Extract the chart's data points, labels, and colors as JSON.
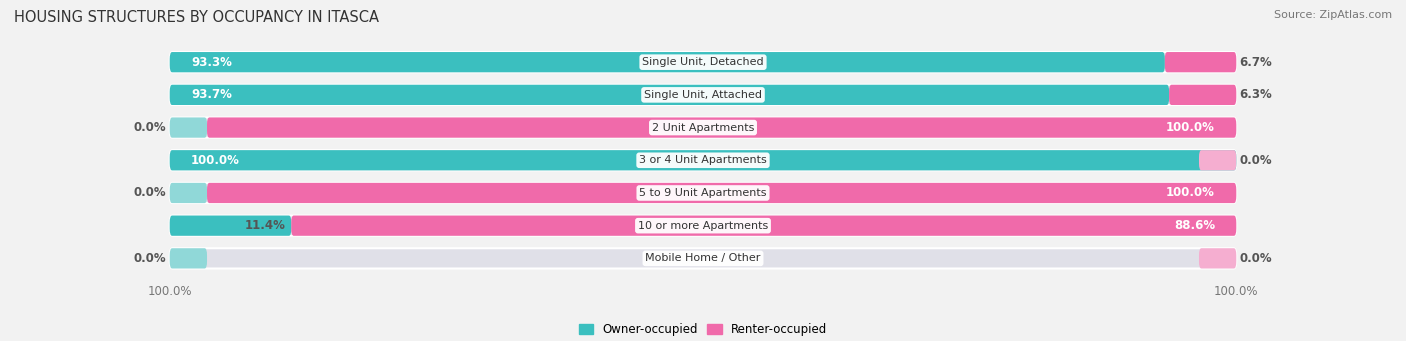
{
  "title": "HOUSING STRUCTURES BY OCCUPANCY IN ITASCA",
  "source": "Source: ZipAtlas.com",
  "categories": [
    "Single Unit, Detached",
    "Single Unit, Attached",
    "2 Unit Apartments",
    "3 or 4 Unit Apartments",
    "5 to 9 Unit Apartments",
    "10 or more Apartments",
    "Mobile Home / Other"
  ],
  "owner_pct": [
    93.3,
    93.7,
    0.0,
    100.0,
    0.0,
    11.4,
    0.0
  ],
  "renter_pct": [
    6.7,
    6.3,
    100.0,
    0.0,
    100.0,
    88.6,
    0.0
  ],
  "owner_color": "#3bbfbf",
  "renter_color": "#f06aaa",
  "owner_light": "#90d8d8",
  "renter_light": "#f5aed0",
  "bg_color": "#f2f2f2",
  "row_bg": "#e0e0e8",
  "title_fontsize": 10.5,
  "source_fontsize": 8,
  "label_fontsize": 8.5,
  "cat_fontsize": 8,
  "tick_fontsize": 8.5,
  "legend_fontsize": 8.5,
  "figsize": [
    14.06,
    3.41
  ],
  "dpi": 100
}
